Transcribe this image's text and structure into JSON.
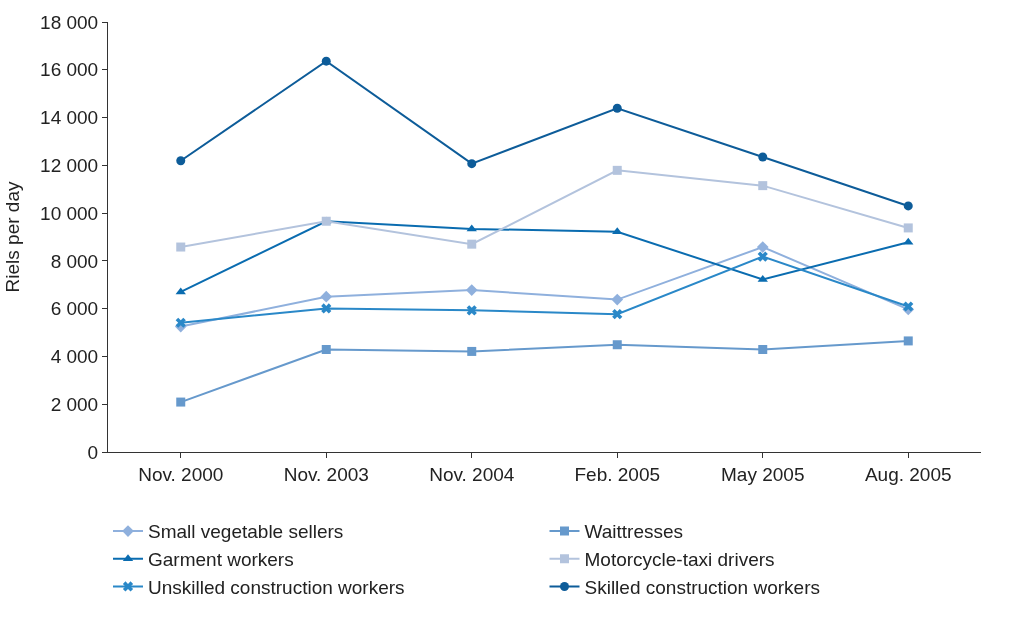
{
  "chart_data": {
    "type": "line",
    "ylabel": "Riels per day",
    "categories": [
      "Nov. 2000",
      "Nov. 2003",
      "Nov. 2004",
      "Feb. 2005",
      "May 2005",
      "Aug. 2005"
    ],
    "series": [
      {
        "name": "Small vegetable sellers",
        "color": "#8fb0dd",
        "marker": "diamond",
        "values": [
          5250,
          6500,
          6780,
          6380,
          8580,
          5970
        ]
      },
      {
        "name": "Waittresses",
        "color": "#6699cc",
        "marker": "square",
        "values": [
          2090,
          4290,
          4210,
          4490,
          4290,
          4650
        ]
      },
      {
        "name": "Garment workers",
        "color": "#0a6cb0",
        "marker": "triangle",
        "values": [
          6700,
          9660,
          9340,
          9220,
          7220,
          8780
        ]
      },
      {
        "name": "Motorcycle-taxi drivers",
        "color": "#b3c3dd",
        "marker": "square",
        "values": [
          8580,
          9660,
          8700,
          11790,
          11150,
          9380
        ]
      },
      {
        "name": "Unskilled construction workers",
        "color": "#2a88c8",
        "marker": "cross",
        "values": [
          5410,
          6010,
          5930,
          5770,
          8180,
          6090
        ]
      },
      {
        "name": "Skilled construction workers",
        "color": "#0d5c99",
        "marker": "circle",
        "values": [
          12190,
          16360,
          12070,
          14390,
          12350,
          10300
        ]
      }
    ],
    "ylim": [
      0,
      18000
    ],
    "yticks": [
      0,
      {
        "value": 2000,
        "label": "2 000"
      },
      {
        "value": 4000,
        "label": "4 000"
      },
      {
        "value": 6000,
        "label": "6 000"
      },
      {
        "value": 8000,
        "label": "8 000"
      },
      {
        "value": 10000,
        "label": "10 000"
      },
      {
        "value": 12000,
        "label": "12 000"
      },
      {
        "value": 14000,
        "label": "14 000"
      },
      {
        "value": 16000,
        "label": "16 000"
      },
      {
        "value": 18000,
        "label": "18 000"
      }
    ],
    "legend": "bottom",
    "line_style": "solid"
  }
}
